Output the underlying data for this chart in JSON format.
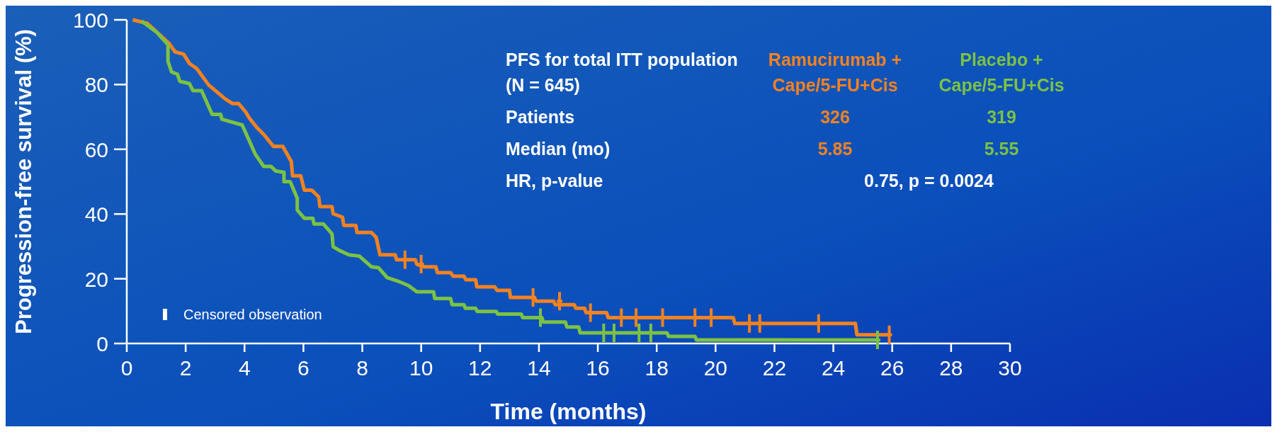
{
  "chart_data": {
    "type": "line",
    "xlabel": "Time (months)",
    "ylabel": "Progression-free survival (%)",
    "xlim": [
      0,
      30
    ],
    "xticks": [
      0,
      2,
      4,
      6,
      8,
      10,
      12,
      14,
      16,
      18,
      20,
      22,
      24,
      26,
      28,
      30
    ],
    "ylim": [
      0,
      100
    ],
    "yticks": [
      0,
      20,
      40,
      60,
      80,
      100
    ],
    "grid": false,
    "legend": false,
    "series": [
      {
        "name": "Ramucirumab + Cape/5-FU+Cis",
        "color": "#f5821f",
        "marker": "none",
        "x": [
          0.2,
          0.7,
          1.44,
          1.64,
          1.93,
          2.13,
          2.37,
          2.78,
          3.35,
          3.6,
          3.8,
          4.04,
          4.16,
          4.41,
          4.65,
          4.98,
          5.3,
          5.59,
          5.63,
          5.91,
          6.03,
          6.28,
          6.52,
          6.56,
          6.97,
          7.01,
          7.33,
          7.37,
          7.78,
          7.82,
          8.31,
          8.47,
          8.6,
          9.12,
          9.16,
          9.8,
          9.85,
          10.1,
          10.5,
          10.55,
          11.0,
          11.08,
          11.45,
          11.52,
          11.85,
          11.89,
          12.5,
          12.58,
          13.0,
          13.03,
          13.85,
          13.9,
          14.5,
          14.55,
          15.2,
          15.25,
          15.55,
          15.6,
          16.3,
          16.35,
          20.6,
          20.65,
          24.75,
          24.8,
          25.9
        ],
        "values": [
          100,
          98.9,
          92.7,
          90.1,
          89.4,
          86.5,
          85,
          79.9,
          75.5,
          74.1,
          74.1,
          71.5,
          69.7,
          66.8,
          64.6,
          60.9,
          60.9,
          56.2,
          51.8,
          51.8,
          47.4,
          47.4,
          45.3,
          42.3,
          42.3,
          40.1,
          39,
          36.5,
          36.5,
          34.3,
          34.3,
          32.8,
          27.4,
          27.4,
          25.9,
          25.9,
          24.5,
          23.7,
          23.7,
          21.9,
          21.9,
          20.8,
          20.8,
          19.7,
          19.7,
          17.5,
          17.5,
          16.4,
          16.4,
          14.2,
          14.2,
          13.1,
          13.1,
          12,
          12,
          10.9,
          10.9,
          9.5,
          9.5,
          8,
          8,
          6.2,
          6.2,
          2.7,
          2.7
        ]
      },
      {
        "name": "Placebo + Cape/5-FU+Cis",
        "color": "#7cc242",
        "marker": "none",
        "x": [
          0.5,
          1.0,
          1.4,
          1.4,
          1.52,
          1.72,
          1.8,
          2.13,
          2.25,
          2.54,
          2.9,
          3.19,
          3.23,
          3.92,
          4.37,
          4.65,
          4.9,
          5.06,
          5.34,
          5.34,
          5.55,
          5.79,
          5.79,
          6.03,
          6.32,
          6.36,
          6.68,
          6.97,
          7.01,
          7.21,
          7.54,
          7.9,
          8.31,
          8.55,
          8.84,
          9.2,
          9.57,
          9.85,
          10.42,
          10.46,
          11.0,
          11.05,
          11.45,
          11.5,
          11.85,
          11.9,
          12.55,
          12.6,
          13.4,
          13.45,
          14.1,
          14.15,
          14.9,
          14.95,
          15.35,
          15.4,
          18.35,
          18.4,
          19.3,
          19.35,
          25.5
        ],
        "values": [
          99.6,
          96.3,
          92.3,
          87.2,
          83.9,
          83.2,
          81,
          80.3,
          78.1,
          78.1,
          70.8,
          70.8,
          69.3,
          67.5,
          58.4,
          54.7,
          54.7,
          53.3,
          52.9,
          50,
          50,
          44.9,
          41.2,
          38.7,
          38.7,
          36.9,
          36.9,
          33.9,
          29.9,
          28.8,
          27.4,
          27,
          23.7,
          23.4,
          20.4,
          19.3,
          17.9,
          16,
          16,
          13.9,
          13.9,
          12,
          12,
          10.9,
          10.9,
          9.9,
          9.9,
          9.1,
          9.1,
          8,
          8,
          6.6,
          6.6,
          5.1,
          5.1,
          3.3,
          3.3,
          2.2,
          2.2,
          1.1,
          1.1
        ]
      },
      {
        "type": "scatter",
        "color": "#f5821f",
        "marker": "cross",
        "x": [
          9.45,
          10.0,
          13.8,
          14.7,
          15.75,
          16.8,
          17.3,
          18.2,
          19.3,
          19.85,
          21.15,
          21.5,
          23.5,
          25.9
        ],
        "values": [
          25.9,
          24.5,
          14.2,
          13.1,
          9.5,
          8,
          8,
          8,
          8,
          8,
          6.2,
          6.2,
          6.2,
          2.7
        ]
      },
      {
        "type": "scatter",
        "color": "#7cc242",
        "marker": "cross",
        "x": [
          14.05,
          16.2,
          16.55,
          17.4,
          17.8,
          25.5
        ],
        "values": [
          8,
          3.3,
          3.3,
          3.3,
          3.3,
          1.1
        ]
      }
    ],
    "annotations": [
      "PFS for total ITT population",
      "(N = 645)",
      "Patients",
      "326",
      "319",
      "Median (mo)",
      "5.85",
      "5.55",
      "HR, p-value",
      "0.75, p = 0.0024",
      "Censored observation"
    ]
  }
}
